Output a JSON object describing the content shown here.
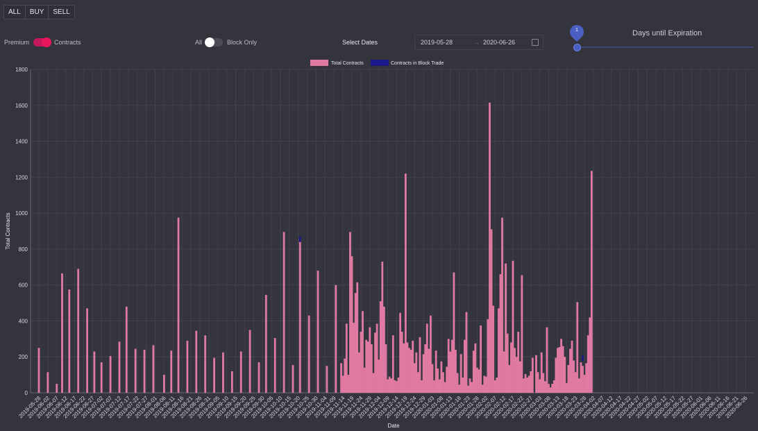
{
  "toolbar": {
    "buttons": [
      "ALL",
      "BUY",
      "SELL"
    ]
  },
  "toggle_premium": {
    "left_label": "Premium",
    "right_label": "Contracts",
    "on": true
  },
  "toggle_block": {
    "left_label": "All",
    "right_label": "Block Only",
    "on": false
  },
  "date_filter": {
    "label": "Select Dates",
    "start": "2019-05-28",
    "arrow": "→",
    "end": "2020-06-26"
  },
  "expiration_slider": {
    "title": "Days until Expiration",
    "value": "1"
  },
  "colors": {
    "total": "#e07aa3",
    "block": "#1a1a8c",
    "background": "#34343d",
    "grid": "#42424c"
  },
  "chart_data": {
    "type": "bar",
    "title": "",
    "xlabel": "Date",
    "ylabel": "Total Contracts",
    "ylim": [
      0,
      1800
    ],
    "yticks": [
      0,
      200,
      400,
      600,
      800,
      1000,
      1200,
      1400,
      1600,
      1800
    ],
    "grid": true,
    "legend_position": "top-center",
    "x_tick_labels": [
      "2019-05-28",
      "2019-06-02",
      "2019-06-07",
      "2019-06-12",
      "2019-06-17",
      "2019-06-22",
      "2019-06-27",
      "2019-07-02",
      "2019-07-07",
      "2019-07-12",
      "2019-07-17",
      "2019-07-22",
      "2019-07-27",
      "2019-08-01",
      "2019-08-06",
      "2019-08-11",
      "2019-08-16",
      "2019-08-21",
      "2019-08-26",
      "2019-08-31",
      "2019-09-05",
      "2019-09-10",
      "2019-09-15",
      "2019-09-20",
      "2019-09-25",
      "2019-09-30",
      "2019-10-05",
      "2019-10-10",
      "2019-10-15",
      "2019-10-20",
      "2019-10-25",
      "2019-10-30",
      "2019-11-04",
      "2019-11-09",
      "2019-11-14",
      "2019-11-19",
      "2019-11-24",
      "2019-11-29",
      "2019-12-04",
      "2019-12-09",
      "2019-12-14",
      "2019-12-19",
      "2019-12-24",
      "2019-12-29",
      "2020-01-03",
      "2020-01-08",
      "2020-01-13",
      "2020-01-18",
      "2020-01-23",
      "2020-01-28",
      "2020-02-02",
      "2020-02-07",
      "2020-02-12",
      "2020-02-17",
      "2020-02-22",
      "2020-02-27",
      "2020-03-03",
      "2020-03-08",
      "2020-03-13",
      "2020-03-18",
      "2020-03-23",
      "2020-03-28",
      "2020-04-02",
      "2020-04-07",
      "2020-04-12",
      "2020-04-17",
      "2020-04-22",
      "2020-04-27",
      "2020-05-02",
      "2020-05-07",
      "2020-05-12",
      "2020-05-17",
      "2020-05-22",
      "2020-05-27",
      "2020-06-01",
      "2020-06-06",
      "2020-06-11",
      "2020-06-16",
      "2020-06-21",
      "2020-06-26"
    ],
    "series": [
      {
        "name": "Total Contracts",
        "points": [
          [
            "2019-05-28",
            250
          ],
          [
            "2019-06-02",
            115
          ],
          [
            "2019-06-07",
            50
          ],
          [
            "2019-06-10",
            665
          ],
          [
            "2019-06-14",
            575
          ],
          [
            "2019-06-19",
            690
          ],
          [
            "2019-06-24",
            470
          ],
          [
            "2019-06-28",
            230
          ],
          [
            "2019-07-02",
            170
          ],
          [
            "2019-07-07",
            205
          ],
          [
            "2019-07-12",
            285
          ],
          [
            "2019-07-16",
            480
          ],
          [
            "2019-07-21",
            245
          ],
          [
            "2019-07-26",
            240
          ],
          [
            "2019-07-31",
            265
          ],
          [
            "2019-08-06",
            100
          ],
          [
            "2019-08-10",
            235
          ],
          [
            "2019-08-14",
            975
          ],
          [
            "2019-08-19",
            290
          ],
          [
            "2019-08-24",
            345
          ],
          [
            "2019-08-29",
            320
          ],
          [
            "2019-09-03",
            195
          ],
          [
            "2019-09-08",
            225
          ],
          [
            "2019-09-13",
            120
          ],
          [
            "2019-09-18",
            230
          ],
          [
            "2019-09-23",
            350
          ],
          [
            "2019-09-28",
            170
          ],
          [
            "2019-10-02",
            545
          ],
          [
            "2019-10-07",
            305
          ],
          [
            "2019-10-12",
            895
          ],
          [
            "2019-10-17",
            155
          ],
          [
            "2019-10-21",
            850
          ],
          [
            "2019-10-26",
            430
          ],
          [
            "2019-10-31",
            680
          ],
          [
            "2019-11-05",
            150
          ],
          [
            "2019-11-10",
            600
          ],
          [
            "2019-11-13",
            165
          ],
          [
            "2019-11-14",
            95
          ],
          [
            "2019-11-15",
            190
          ],
          [
            "2019-11-16",
            385
          ],
          [
            "2019-11-17",
            100
          ],
          [
            "2019-11-18",
            895
          ],
          [
            "2019-11-19",
            760
          ],
          [
            "2019-11-20",
            390
          ],
          [
            "2019-11-21",
            555
          ],
          [
            "2019-11-22",
            615
          ],
          [
            "2019-11-23",
            225
          ],
          [
            "2019-11-24",
            340
          ],
          [
            "2019-11-25",
            455
          ],
          [
            "2019-11-26",
            140
          ],
          [
            "2019-11-27",
            295
          ],
          [
            "2019-11-28",
            285
          ],
          [
            "2019-11-29",
            365
          ],
          [
            "2019-11-30",
            270
          ],
          [
            "2019-12-01",
            110
          ],
          [
            "2019-12-02",
            335
          ],
          [
            "2019-12-03",
            385
          ],
          [
            "2019-12-04",
            185
          ],
          [
            "2019-12-05",
            510
          ],
          [
            "2019-12-06",
            730
          ],
          [
            "2019-12-07",
            480
          ],
          [
            "2019-12-08",
            270
          ],
          [
            "2019-12-09",
            75
          ],
          [
            "2019-12-10",
            90
          ],
          [
            "2019-12-11",
            80
          ],
          [
            "2019-12-12",
            320
          ],
          [
            "2019-12-13",
            70
          ],
          [
            "2019-12-14",
            65
          ],
          [
            "2019-12-15",
            85
          ],
          [
            "2019-12-16",
            445
          ],
          [
            "2019-12-17",
            340
          ],
          [
            "2019-12-18",
            275
          ],
          [
            "2019-12-19",
            1220
          ],
          [
            "2019-12-20",
            280
          ],
          [
            "2019-12-21",
            250
          ],
          [
            "2019-12-22",
            240
          ],
          [
            "2019-12-23",
            290
          ],
          [
            "2019-12-24",
            165
          ],
          [
            "2019-12-25",
            225
          ],
          [
            "2019-12-26",
            115
          ],
          [
            "2019-12-27",
            310
          ],
          [
            "2019-12-28",
            70
          ],
          [
            "2019-12-29",
            215
          ],
          [
            "2019-12-30",
            270
          ],
          [
            "2019-12-31",
            385
          ],
          [
            "2020-01-01",
            245
          ],
          [
            "2020-01-02",
            430
          ],
          [
            "2020-01-03",
            160
          ],
          [
            "2020-01-04",
            70
          ],
          [
            "2020-01-05",
            235
          ],
          [
            "2020-01-06",
            135
          ],
          [
            "2020-01-07",
            75
          ],
          [
            "2020-01-08",
            175
          ],
          [
            "2020-01-09",
            115
          ],
          [
            "2020-01-10",
            60
          ],
          [
            "2020-01-11",
            145
          ],
          [
            "2020-01-12",
            300
          ],
          [
            "2020-01-13",
            230
          ],
          [
            "2020-01-14",
            295
          ],
          [
            "2020-01-15",
            670
          ],
          [
            "2020-01-16",
            240
          ],
          [
            "2020-01-17",
            110
          ],
          [
            "2020-01-18",
            45
          ],
          [
            "2020-01-19",
            215
          ],
          [
            "2020-01-20",
            85
          ],
          [
            "2020-01-21",
            295
          ],
          [
            "2020-01-22",
            450
          ],
          [
            "2020-01-23",
            40
          ],
          [
            "2020-01-24",
            80
          ],
          [
            "2020-01-25",
            60
          ],
          [
            "2020-01-26",
            235
          ],
          [
            "2020-01-27",
            275
          ],
          [
            "2020-01-28",
            140
          ],
          [
            "2020-01-29",
            130
          ],
          [
            "2020-01-30",
            375
          ],
          [
            "2020-01-31",
            45
          ],
          [
            "2020-02-01",
            95
          ],
          [
            "2020-02-02",
            90
          ],
          [
            "2020-02-03",
            410
          ],
          [
            "2020-02-04",
            1615
          ],
          [
            "2020-02-05",
            910
          ],
          [
            "2020-02-06",
            485
          ],
          [
            "2020-02-07",
            70
          ],
          [
            "2020-02-08",
            85
          ],
          [
            "2020-02-09",
            470
          ],
          [
            "2020-02-10",
            660
          ],
          [
            "2020-02-11",
            975
          ],
          [
            "2020-02-12",
            230
          ],
          [
            "2020-02-13",
            720
          ],
          [
            "2020-02-14",
            330
          ],
          [
            "2020-02-15",
            155
          ],
          [
            "2020-02-16",
            280
          ],
          [
            "2020-02-17",
            735
          ],
          [
            "2020-02-18",
            250
          ],
          [
            "2020-02-19",
            200
          ],
          [
            "2020-02-20",
            340
          ],
          [
            "2020-02-21",
            175
          ],
          [
            "2020-02-22",
            655
          ],
          [
            "2020-02-23",
            80
          ],
          [
            "2020-02-24",
            105
          ],
          [
            "2020-02-25",
            85
          ],
          [
            "2020-02-26",
            95
          ],
          [
            "2020-02-27",
            120
          ],
          [
            "2020-02-28",
            195
          ],
          [
            "2020-03-01",
            210
          ],
          [
            "2020-03-02",
            115
          ],
          [
            "2020-03-03",
            75
          ],
          [
            "2020-03-04",
            225
          ],
          [
            "2020-03-05",
            110
          ],
          [
            "2020-03-06",
            65
          ],
          [
            "2020-03-07",
            365
          ],
          [
            "2020-03-08",
            50
          ],
          [
            "2020-03-09",
            30
          ],
          [
            "2020-03-10",
            50
          ],
          [
            "2020-03-11",
            70
          ],
          [
            "2020-03-12",
            195
          ],
          [
            "2020-03-13",
            250
          ],
          [
            "2020-03-14",
            255
          ],
          [
            "2020-03-15",
            300
          ],
          [
            "2020-03-16",
            260
          ],
          [
            "2020-03-17",
            200
          ],
          [
            "2020-03-18",
            55
          ],
          [
            "2020-03-19",
            155
          ],
          [
            "2020-03-20",
            245
          ],
          [
            "2020-03-21",
            290
          ],
          [
            "2020-03-22",
            180
          ],
          [
            "2020-03-23",
            115
          ],
          [
            "2020-03-24",
            505
          ],
          [
            "2020-03-25",
            80
          ],
          [
            "2020-03-26",
            170
          ],
          [
            "2020-03-27",
            150
          ],
          [
            "2020-03-28",
            100
          ],
          [
            "2020-03-29",
            165
          ],
          [
            "2020-03-30",
            320
          ],
          [
            "2020-03-31",
            420
          ],
          [
            "2020-04-01",
            1235
          ]
        ]
      },
      {
        "name": "Contracts in Block Trade",
        "points": [
          [
            "2019-10-21",
            870
          ],
          [
            "2020-03-27",
            210
          ]
        ]
      }
    ]
  }
}
